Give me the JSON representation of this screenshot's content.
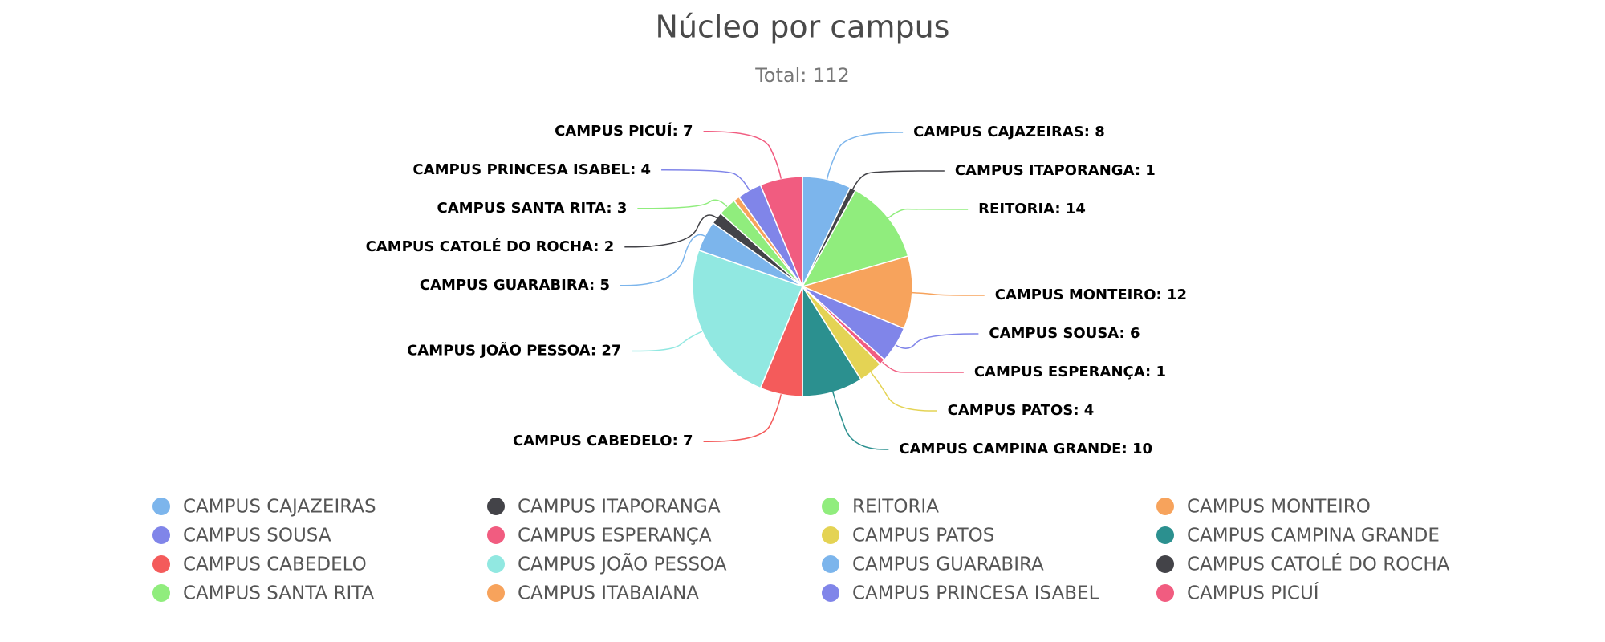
{
  "chart_data": {
    "type": "pie",
    "title": "Núcleo por campus",
    "subtitle": "Total: 112",
    "categories": [
      "CAMPUS CAJAZEIRAS",
      "CAMPUS ITAPORANGA",
      "REITORIA",
      "CAMPUS MONTEIRO",
      "CAMPUS SOUSA",
      "CAMPUS ESPERANÇA",
      "CAMPUS PATOS",
      "CAMPUS CAMPINA GRANDE",
      "CAMPUS CABEDELO",
      "CAMPUS JOÃO PESSOA",
      "CAMPUS GUARABIRA",
      "CAMPUS CATOLÉ DO ROCHA",
      "CAMPUS SANTA RITA",
      "CAMPUS ITABAIANA",
      "CAMPUS PRINCESA ISABEL",
      "CAMPUS PICUÍ"
    ],
    "values": [
      8,
      1,
      14,
      12,
      6,
      1,
      4,
      10,
      7,
      27,
      5,
      2,
      3,
      1,
      4,
      7
    ],
    "value_labels": [
      "CAMPUS CAJAZEIRAS: 8",
      "CAMPUS ITAPORANGA: 1",
      "REITORIA: 14",
      "CAMPUS MONTEIRO: 12",
      "CAMPUS SOUSA: 6",
      "CAMPUS ESPERANÇA: 1",
      "CAMPUS PATOS: 4",
      "CAMPUS CAMPINA GRANDE: 10",
      "CAMPUS CABEDELO: 7",
      "CAMPUS JOÃO PESSOA: 27",
      "CAMPUS GUARABIRA: 5",
      "CAMPUS CATOLÉ DO ROCHA: 2",
      "CAMPUS SANTA RITA: 3",
      null,
      "CAMPUS PRINCESA ISABEL: 4",
      "CAMPUS PICUÍ: 7"
    ],
    "colors": [
      "#7cb5ec",
      "#434348",
      "#90ed7d",
      "#f7a35c",
      "#8085e9",
      "#f15c80",
      "#e4d354",
      "#2b908f",
      "#f45b5b",
      "#91e8e1",
      "#7cb5ec",
      "#434348",
      "#90ed7d",
      "#f7a35c",
      "#8085e9",
      "#f15c80"
    ],
    "legend": true
  }
}
